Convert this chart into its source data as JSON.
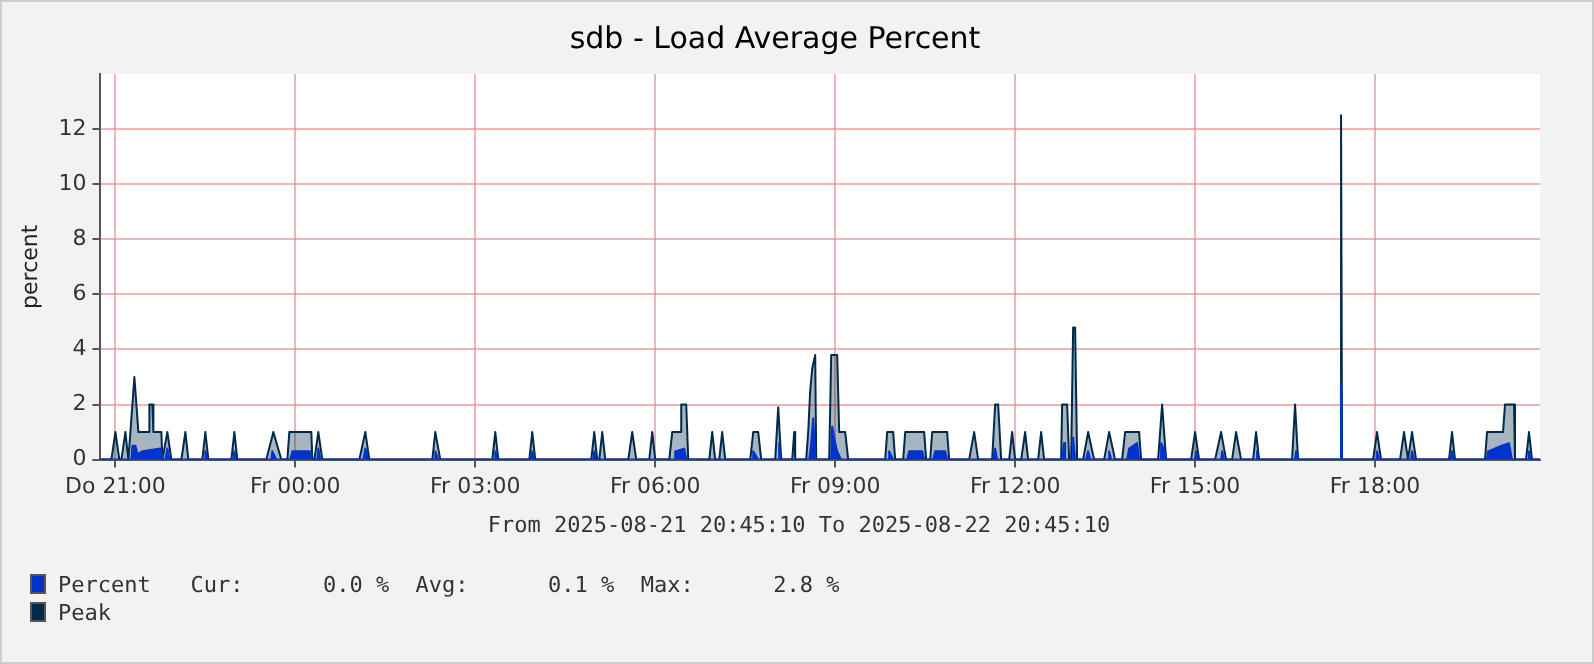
{
  "chart_data": {
    "type": "area",
    "title": "sdb - Load Average Percent",
    "ylabel": "percent",
    "xlim": [
      "2025-08-21T20:45",
      "2025-08-22T20:45"
    ],
    "xticks": [
      {
        "value": "2025-08-21T21:00",
        "label": "Do 21:00"
      },
      {
        "value": "2025-08-22T00:00",
        "label": "Fr 00:00"
      },
      {
        "value": "2025-08-22T03:00",
        "label": "Fr 03:00"
      },
      {
        "value": "2025-08-22T06:00",
        "label": "Fr 06:00"
      },
      {
        "value": "2025-08-22T09:00",
        "label": "Fr 09:00"
      },
      {
        "value": "2025-08-22T12:00",
        "label": "Fr 12:00"
      },
      {
        "value": "2025-08-22T15:00",
        "label": "Fr 15:00"
      },
      {
        "value": "2025-08-22T18:00",
        "label": "Fr 18:00"
      }
    ],
    "ylim": [
      0,
      14
    ],
    "yticks": [
      0,
      2,
      4,
      6,
      8,
      10,
      12
    ],
    "grid": true,
    "legend": "bottom left",
    "marker": "none",
    "annotations": [
      "From 2025-08-21 20:45:10 To 2025-08-22 20:45:10",
      "Cur:      0.0 %  Avg:      0.1 %  Max:      2.8 %"
    ],
    "series": [
      {
        "name": "Percent",
        "color": "#0033cc",
        "x": [
          "2025-08-21T20:45",
          "2025-08-21T21:16",
          "2025-08-21T21:17",
          "2025-08-21T21:20",
          "2025-08-21T21:22",
          "2025-08-21T21:27",
          "2025-08-21T21:45",
          "2025-08-21T21:47",
          "2025-08-21T21:50",
          "2025-08-21T21:52",
          "2025-08-21T21:54",
          "2025-08-21T22:29",
          "2025-08-21T22:30",
          "2025-08-21T22:32",
          "2025-08-21T22:58",
          "2025-08-21T22:59",
          "2025-08-21T23:01",
          "2025-08-21T23:36",
          "2025-08-21T23:37",
          "2025-08-21T23:41",
          "2025-08-21T23:55",
          "2025-08-21T23:57",
          "2025-08-22T00:15",
          "2025-08-22T00:17",
          "2025-08-22T00:22",
          "2025-08-22T00:23",
          "2025-08-22T00:25",
          "2025-08-22T01:08",
          "2025-08-22T01:10",
          "2025-08-22T01:13",
          "2025-08-22T02:19",
          "2025-08-22T02:20",
          "2025-08-22T02:23",
          "2025-08-22T03:19",
          "2025-08-22T03:20",
          "2025-08-22T03:22",
          "2025-08-22T03:56",
          "2025-08-22T03:57",
          "2025-08-22T03:59",
          "2025-08-22T04:58",
          "2025-08-22T04:59",
          "2025-08-22T05:01",
          "2025-08-22T06:19",
          "2025-08-22T06:20",
          "2025-08-22T06:29",
          "2025-08-22T06:31",
          "2025-08-22T07:37",
          "2025-08-22T07:38",
          "2025-08-22T07:43",
          "2025-08-22T08:03",
          "2025-08-22T08:04",
          "2025-08-22T08:05",
          "2025-08-22T08:34",
          "2025-08-22T08:36",
          "2025-08-22T08:38",
          "2025-08-22T08:40",
          "2025-08-22T08:56",
          "2025-08-22T08:57",
          "2025-08-22T09:00",
          "2025-08-22T09:02",
          "2025-08-22T09:06",
          "2025-08-22T09:53",
          "2025-08-22T09:54",
          "2025-08-22T09:58",
          "2025-08-22T10:12",
          "2025-08-22T10:14",
          "2025-08-22T10:27",
          "2025-08-22T10:29",
          "2025-08-22T10:38",
          "2025-08-22T10:40",
          "2025-08-22T10:50",
          "2025-08-22T10:52",
          "2025-08-22T11:38",
          "2025-08-22T11:40",
          "2025-08-22T11:42",
          "2025-08-22T12:47",
          "2025-08-22T12:49",
          "2025-08-22T12:50",
          "2025-08-22T12:57",
          "2025-08-22T12:58",
          "2025-08-22T13:00",
          "2025-08-22T13:11",
          "2025-08-22T13:13",
          "2025-08-22T13:15",
          "2025-08-22T13:33",
          "2025-08-22T13:34",
          "2025-08-22T13:36",
          "2025-08-22T13:52",
          "2025-08-22T13:54",
          "2025-08-22T14:02",
          "2025-08-22T14:04",
          "2025-08-22T14:25",
          "2025-08-22T14:26",
          "2025-08-22T14:30",
          "2025-08-22T14:31",
          "2025-08-22T15:00",
          "2025-08-22T15:01",
          "2025-08-22T15:03",
          "2025-08-22T15:26",
          "2025-08-22T15:27",
          "2025-08-22T15:29",
          "2025-08-22T16:01",
          "2025-08-22T16:02",
          "2025-08-22T16:04",
          "2025-08-22T16:40",
          "2025-08-22T16:41",
          "2025-08-22T16:43",
          "2025-08-22T17:25",
          "2025-08-22T17:26",
          "2025-08-22T17:27",
          "2025-08-22T18:01",
          "2025-08-22T18:02",
          "2025-08-22T18:04",
          "2025-08-22T18:36",
          "2025-08-22T18:37",
          "2025-08-22T18:39",
          "2025-08-22T19:16",
          "2025-08-22T19:17",
          "2025-08-22T19:19",
          "2025-08-22T19:52",
          "2025-08-22T19:53",
          "2025-08-22T20:06",
          "2025-08-22T20:14",
          "2025-08-22T20:17",
          "2025-08-22T20:33",
          "2025-08-22T20:34",
          "2025-08-22T20:36",
          "2025-08-22T20:45"
        ],
        "values": [
          0,
          0,
          0.5,
          0.5,
          0.2,
          0.3,
          0.4,
          0,
          0,
          0.4,
          0,
          0,
          0.3,
          0,
          0,
          0.3,
          0,
          0,
          0.3,
          0,
          0,
          0.3,
          0.3,
          0,
          0,
          0.4,
          0,
          0,
          0.4,
          0,
          0,
          0.3,
          0,
          0,
          0.3,
          0,
          0,
          0.3,
          0,
          0,
          0.3,
          0,
          0,
          0.3,
          0.4,
          0,
          0,
          0.3,
          0,
          0,
          0.6,
          0,
          0,
          0.6,
          1.5,
          0,
          0,
          1.2,
          0.6,
          0.3,
          0,
          0,
          0.3,
          0,
          0,
          0.3,
          0.3,
          0,
          0,
          0.3,
          0.3,
          0,
          0,
          0.4,
          0,
          0,
          0.6,
          0,
          0,
          0.8,
          0,
          0,
          0.3,
          0,
          0,
          0.3,
          0,
          0,
          0.4,
          0.6,
          0,
          0,
          0.6,
          0.3,
          0,
          0,
          0.3,
          0,
          0,
          0.3,
          0,
          0,
          0.3,
          0,
          0,
          0.3,
          0,
          0,
          2.8,
          0,
          0,
          0.3,
          0,
          0,
          0.3,
          0,
          0,
          0.3,
          0,
          0,
          0.3,
          0.5,
          0.6,
          0,
          0,
          0.3,
          0,
          0
        ]
      },
      {
        "name": "Peak",
        "color": "#002a4a",
        "x": [
          "2025-08-21T20:45",
          "2025-08-21T20:56",
          "2025-08-21T21:00",
          "2025-08-21T21:04",
          "2025-08-21T21:06",
          "2025-08-21T21:10",
          "2025-08-21T21:13",
          "2025-08-21T21:14",
          "2025-08-21T21:19",
          "2025-08-21T21:23",
          "2025-08-21T21:24",
          "2025-08-21T21:33",
          "2025-08-21T21:34",
          "2025-08-21T21:37",
          "2025-08-21T21:38",
          "2025-08-21T21:46",
          "2025-08-21T21:47",
          "2025-08-21T21:52",
          "2025-08-21T21:56",
          "2025-08-21T22:06",
          "2025-08-21T22:10",
          "2025-08-21T22:13",
          "2025-08-21T22:27",
          "2025-08-21T22:30",
          "2025-08-21T22:33",
          "2025-08-21T22:56",
          "2025-08-21T22:59",
          "2025-08-21T23:02",
          "2025-08-21T23:31",
          "2025-08-21T23:38",
          "2025-08-21T23:46",
          "2025-08-21T23:52",
          "2025-08-21T23:54",
          "2025-08-22T00:16",
          "2025-08-22T00:17",
          "2025-08-22T00:19",
          "2025-08-22T00:23",
          "2025-08-22T00:27",
          "2025-08-22T01:04",
          "2025-08-22T01:10",
          "2025-08-22T01:14",
          "2025-08-22T02:17",
          "2025-08-22T02:20",
          "2025-08-22T02:25",
          "2025-08-22T03:17",
          "2025-08-22T03:20",
          "2025-08-22T03:23",
          "2025-08-22T03:54",
          "2025-08-22T03:57",
          "2025-08-22T04:00",
          "2025-08-22T04:56",
          "2025-08-22T04:59",
          "2025-08-22T05:02",
          "2025-08-22T05:04",
          "2025-08-22T05:07",
          "2025-08-22T05:10",
          "2025-08-22T05:33",
          "2025-08-22T05:37",
          "2025-08-22T05:41",
          "2025-08-22T05:54",
          "2025-08-22T05:57",
          "2025-08-22T06:00",
          "2025-08-22T06:14",
          "2025-08-22T06:17",
          "2025-08-22T06:25",
          "2025-08-22T06:26",
          "2025-08-22T06:31",
          "2025-08-22T06:33",
          "2025-08-22T06:54",
          "2025-08-22T06:57",
          "2025-08-22T07:00",
          "2025-08-22T07:04",
          "2025-08-22T07:07",
          "2025-08-22T07:10",
          "2025-08-22T07:35",
          "2025-08-22T07:38",
          "2025-08-22T07:43",
          "2025-08-22T07:46",
          "2025-08-22T08:00",
          "2025-08-22T08:03",
          "2025-08-22T08:06",
          "2025-08-22T08:17",
          "2025-08-22T08:19",
          "2025-08-22T08:20",
          "2025-08-22T08:31",
          "2025-08-22T08:33",
          "2025-08-22T08:35",
          "2025-08-22T08:37",
          "2025-08-22T08:40",
          "2025-08-22T08:41",
          "2025-08-22T08:54",
          "2025-08-22T08:56",
          "2025-08-22T09:02",
          "2025-08-22T09:04",
          "2025-08-22T09:10",
          "2025-08-22T09:13",
          "2025-08-22T09:50",
          "2025-08-22T09:52",
          "2025-08-22T09:58",
          "2025-08-22T10:00",
          "2025-08-22T10:08",
          "2025-08-22T10:10",
          "2025-08-22T10:29",
          "2025-08-22T10:31",
          "2025-08-22T10:35",
          "2025-08-22T10:37",
          "2025-08-22T10:52",
          "2025-08-22T10:54",
          "2025-08-22T11:14",
          "2025-08-22T11:19",
          "2025-08-22T11:23",
          "2025-08-22T11:37",
          "2025-08-22T11:40",
          "2025-08-22T11:43",
          "2025-08-22T11:46",
          "2025-08-22T11:54",
          "2025-08-22T11:57",
          "2025-08-22T12:00",
          "2025-08-22T12:06",
          "2025-08-22T12:10",
          "2025-08-22T12:13",
          "2025-08-22T12:23",
          "2025-08-22T12:26",
          "2025-08-22T12:29",
          "2025-08-22T12:46",
          "2025-08-22T12:47",
          "2025-08-22T12:52",
          "2025-08-22T12:54",
          "2025-08-22T12:56",
          "2025-08-22T12:58",
          "2025-08-22T13:00",
          "2025-08-22T13:02",
          "2025-08-22T13:08",
          "2025-08-22T13:13",
          "2025-08-22T13:19",
          "2025-08-22T13:29",
          "2025-08-22T13:34",
          "2025-08-22T13:40",
          "2025-08-22T13:47",
          "2025-08-22T13:50",
          "2025-08-22T14:04",
          "2025-08-22T14:06",
          "2025-08-22T14:23",
          "2025-08-22T14:27",
          "2025-08-22T14:31",
          "2025-08-22T14:56",
          "2025-08-22T15:00",
          "2025-08-22T15:04",
          "2025-08-22T15:20",
          "2025-08-22T15:26",
          "2025-08-22T15:31",
          "2025-08-22T15:37",
          "2025-08-22T15:41",
          "2025-08-22T15:46",
          "2025-08-22T15:58",
          "2025-08-22T16:01",
          "2025-08-22T16:04",
          "2025-08-22T16:37",
          "2025-08-22T16:40",
          "2025-08-22T16:43",
          "2025-08-22T17:25",
          "2025-08-22T17:26",
          "2025-08-22T17:27",
          "2025-08-22T17:58",
          "2025-08-22T18:02",
          "2025-08-22T18:06",
          "2025-08-22T18:25",
          "2025-08-22T18:29",
          "2025-08-22T18:33",
          "2025-08-22T18:37",
          "2025-08-22T18:41",
          "2025-08-22T19:14",
          "2025-08-22T19:17",
          "2025-08-22T19:20",
          "2025-08-22T19:50",
          "2025-08-22T19:52",
          "2025-08-22T20:08",
          "2025-08-22T20:10",
          "2025-08-22T20:19",
          "2025-08-22T20:20",
          "2025-08-22T20:31",
          "2025-08-22T20:34",
          "2025-08-22T20:37",
          "2025-08-22T20:45"
        ],
        "values": [
          0,
          0,
          1,
          0,
          0,
          1,
          0,
          0,
          3,
          1,
          1,
          1,
          2,
          2,
          1,
          1,
          0,
          1,
          0,
          0,
          1,
          0,
          0,
          1,
          0,
          0,
          1,
          0,
          0,
          1,
          0,
          0,
          1,
          1,
          0,
          0,
          1,
          0,
          0,
          1,
          0,
          0,
          1,
          0,
          0,
          1,
          0,
          0,
          1,
          0,
          0,
          1,
          0,
          0,
          1,
          0,
          0,
          1,
          0,
          0,
          1,
          0,
          0,
          1,
          1,
          2,
          2,
          0,
          0,
          1,
          0,
          0,
          1,
          0,
          0,
          1,
          1,
          0,
          0,
          1.9,
          0,
          0,
          1,
          0,
          0,
          1,
          2.5,
          3.3,
          3.8,
          0,
          0,
          3.8,
          3.8,
          1,
          1,
          0,
          0,
          1,
          1,
          0,
          0,
          1,
          1,
          0,
          0,
          1,
          1,
          0,
          0,
          1,
          0,
          0,
          2,
          2,
          0,
          0,
          1,
          0,
          0,
          1,
          0,
          0,
          1,
          0,
          0,
          2,
          2,
          0,
          0,
          4.8,
          4.8,
          0,
          0,
          1,
          0,
          0,
          1,
          0,
          0,
          1,
          1,
          0,
          0,
          2,
          0,
          0,
          1,
          0,
          0,
          1,
          0,
          0,
          1,
          0,
          0,
          1,
          0,
          0,
          2,
          0,
          0,
          12.5,
          0,
          0,
          1,
          0,
          0,
          1,
          0,
          1,
          0,
          0,
          1,
          0,
          0,
          1,
          1,
          2,
          2,
          0,
          0,
          1,
          0,
          0
        ]
      }
    ]
  }
}
